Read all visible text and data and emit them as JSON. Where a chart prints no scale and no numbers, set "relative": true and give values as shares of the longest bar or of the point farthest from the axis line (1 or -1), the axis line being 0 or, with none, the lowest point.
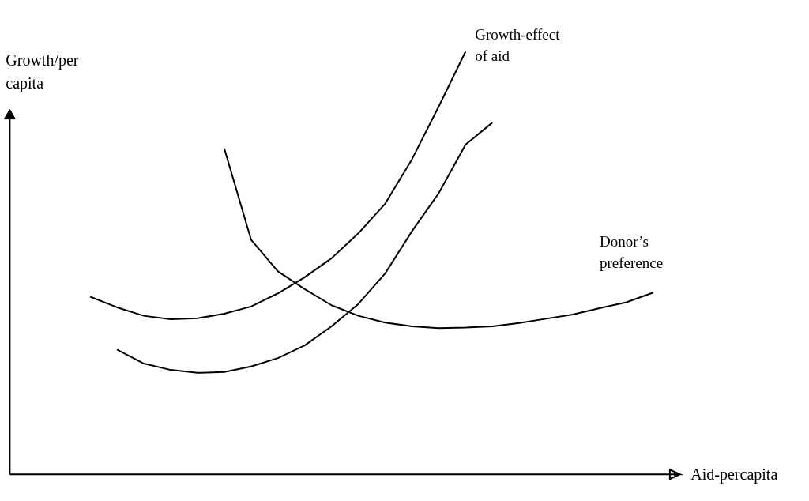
{
  "chart_data": {
    "type": "line",
    "relative": true,
    "xlabel": "Aid-percapita",
    "ylabel": "Growth/per capita",
    "marker": "none",
    "line_style": "solid",
    "categories": [
      null,
      null,
      null,
      null,
      null,
      null,
      null,
      null,
      null,
      null,
      null,
      null,
      null,
      null,
      null,
      null,
      null,
      null,
      null,
      null,
      null,
      null
    ],
    "series": [
      {
        "name": "Growth-effect of aid",
        "color": "#000000",
        "values": [
          0.42,
          0.395,
          0.375,
          0.367,
          0.369,
          0.38,
          0.397,
          0.428,
          0.466,
          0.511,
          0.57,
          0.64,
          0.745,
          0.87,
          1.0,
          null,
          null,
          null,
          null,
          null,
          null,
          null
        ]
      },
      {
        "color": "#000000",
        "values": [
          null,
          0.295,
          0.262,
          0.247,
          0.24,
          0.242,
          0.255,
          0.275,
          0.305,
          0.35,
          0.403,
          0.475,
          0.575,
          0.665,
          0.78,
          0.832,
          null,
          null,
          null,
          null,
          null,
          null
        ]
      },
      {
        "name": "Donor’s preference",
        "color": "#000000",
        "values": [
          null,
          null,
          null,
          null,
          null,
          0.771,
          0.555,
          0.48,
          0.438,
          0.4,
          0.375,
          0.359,
          0.35,
          0.346,
          0.347,
          0.35,
          0.358,
          0.368,
          0.378,
          0.393,
          0.407,
          0.43
        ]
      }
    ]
  }
}
